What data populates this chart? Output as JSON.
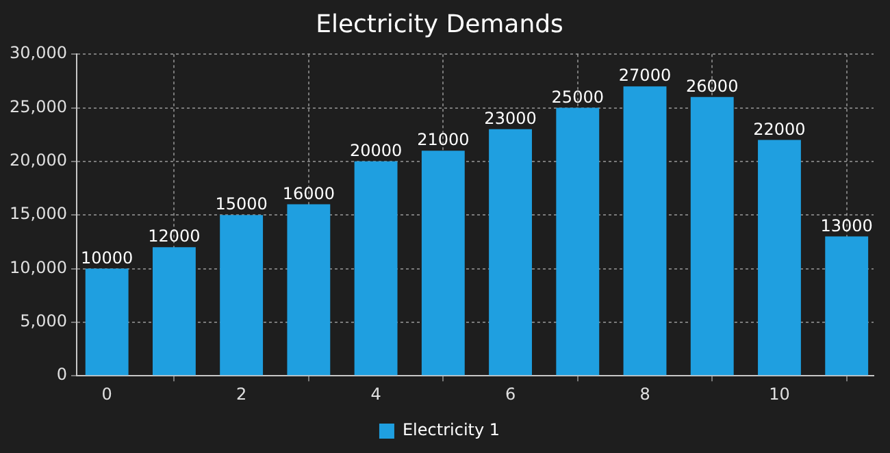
{
  "chart_data": {
    "type": "bar",
    "title": "Electricity Demands",
    "x": [
      0,
      1,
      2,
      3,
      4,
      5,
      6,
      7,
      8,
      9,
      10,
      11
    ],
    "series": [
      {
        "name": "Electricity 1",
        "color": "#1f9fe0",
        "values": [
          10000,
          12000,
          15000,
          16000,
          20000,
          21000,
          23000,
          25000,
          27000,
          26000,
          22000,
          13000
        ]
      }
    ],
    "xlim": [
      -0.45,
      11.4
    ],
    "xticks": [
      0,
      2,
      4,
      6,
      8,
      10
    ],
    "ylim": [
      0,
      30000
    ],
    "yticks": [
      {
        "value": 0,
        "label": "0"
      },
      {
        "value": 5000,
        "label": "5,000"
      },
      {
        "value": 10000,
        "label": "10,000"
      },
      {
        "value": 15000,
        "label": "15,000"
      },
      {
        "value": 20000,
        "label": "20,000"
      },
      {
        "value": 25000,
        "label": "25,000"
      },
      {
        "value": 30000,
        "label": "30,000"
      }
    ],
    "grid": true,
    "legend": "bottom",
    "data_labels": true
  }
}
